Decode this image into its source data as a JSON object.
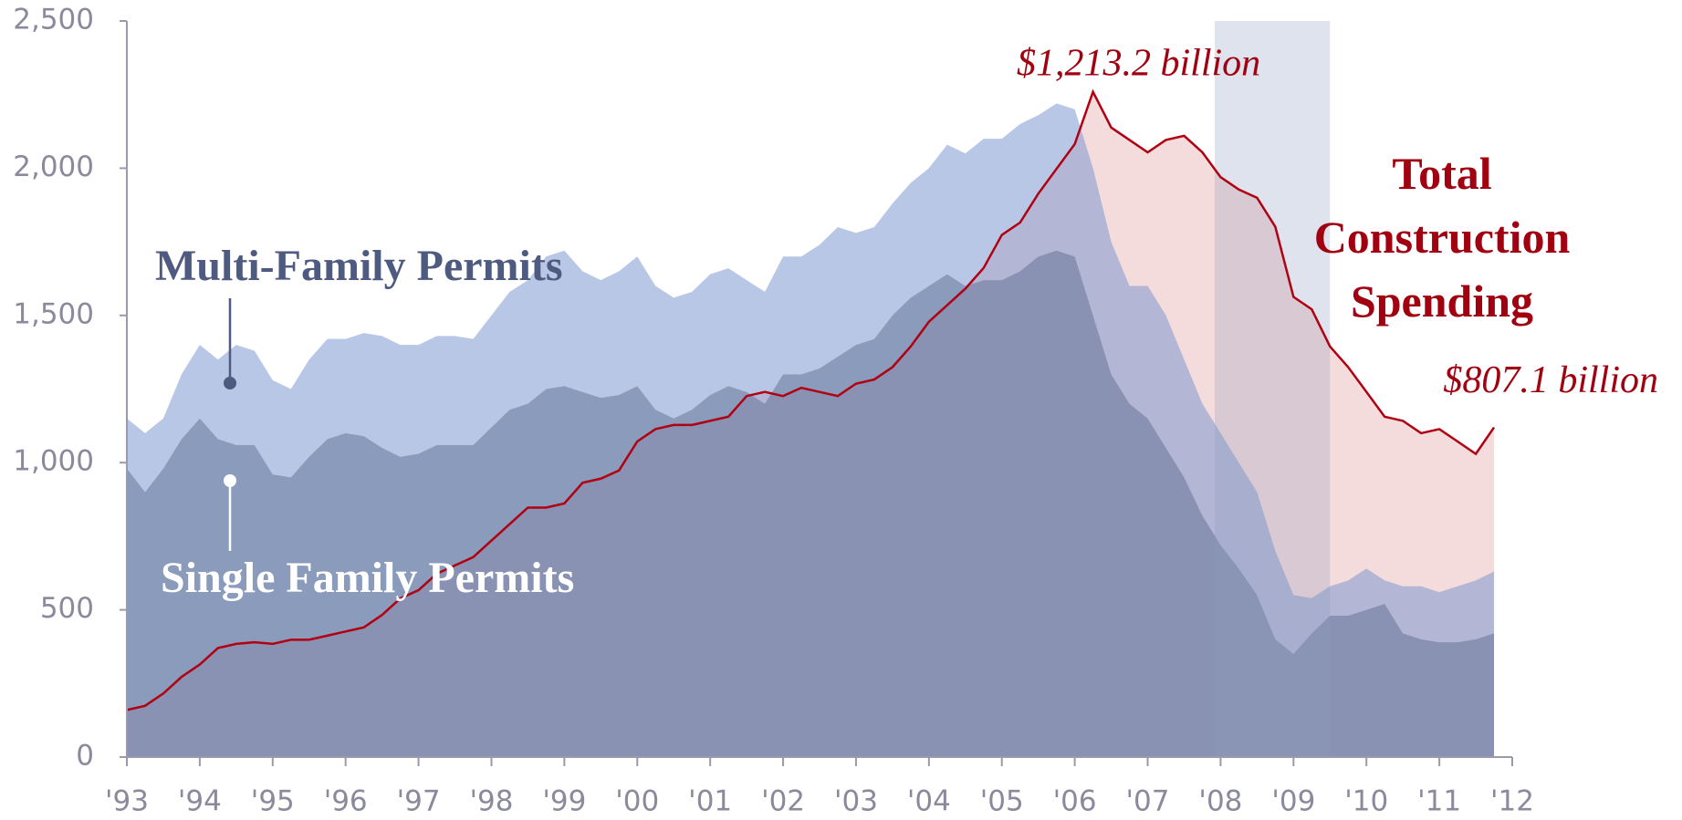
{
  "chart_data": {
    "type": "stacked_area_line",
    "x": [
      1993,
      1993.25,
      1993.5,
      1993.75,
      1994,
      1994.25,
      1994.5,
      1994.75,
      1995,
      1995.25,
      1995.5,
      1995.75,
      1996,
      1996.25,
      1996.5,
      1996.75,
      1997,
      1997.25,
      1997.5,
      1997.75,
      1998,
      1998.25,
      1998.5,
      1998.75,
      1999,
      1999.25,
      1999.5,
      1999.75,
      2000,
      2000.25,
      2000.5,
      2000.75,
      2001,
      2001.25,
      2001.5,
      2001.75,
      2002,
      2002.25,
      2002.5,
      2002.75,
      2003,
      2003.25,
      2003.5,
      2003.75,
      2004,
      2004.25,
      2004.5,
      2004.75,
      2005,
      2005.25,
      2005.5,
      2005.75,
      2006,
      2006.25,
      2006.5,
      2006.75,
      2007,
      2007.25,
      2007.5,
      2007.75,
      2008,
      2008.25,
      2008.5,
      2008.75,
      2009,
      2009.25,
      2009.5,
      2009.75,
      2010,
      2010.25,
      2010.5,
      2010.75,
      2011,
      2011.25,
      2011.5,
      2011.75
    ],
    "series": [
      {
        "name": "Single Family Permits",
        "color": "rgba(100,122,164,0.75)",
        "values": [
          980,
          900,
          980,
          1080,
          1150,
          1080,
          1060,
          1060,
          960,
          950,
          1020,
          1080,
          1100,
          1090,
          1050,
          1020,
          1030,
          1060,
          1060,
          1060,
          1120,
          1180,
          1200,
          1250,
          1260,
          1240,
          1220,
          1230,
          1260,
          1180,
          1150,
          1180,
          1230,
          1260,
          1240,
          1200,
          1300,
          1300,
          1320,
          1360,
          1400,
          1420,
          1500,
          1560,
          1600,
          1640,
          1600,
          1620,
          1620,
          1650,
          1700,
          1720,
          1700,
          1500,
          1300,
          1200,
          1150,
          1050,
          950,
          820,
          720,
          640,
          550,
          400,
          350,
          420,
          480,
          480,
          500,
          520,
          420,
          400,
          390,
          390,
          400,
          420
        ]
      },
      {
        "name": "Multi-Family Permits",
        "color": "rgba(113,143,203,0.5)",
        "values": [
          170,
          200,
          170,
          220,
          250,
          270,
          340,
          320,
          320,
          300,
          330,
          340,
          320,
          350,
          380,
          380,
          370,
          370,
          370,
          360,
          380,
          400,
          420,
          450,
          460,
          410,
          400,
          420,
          440,
          420,
          410,
          400,
          410,
          400,
          380,
          380,
          400,
          400,
          420,
          440,
          380,
          380,
          380,
          390,
          400,
          440,
          450,
          480,
          480,
          500,
          480,
          500,
          500,
          500,
          450,
          400,
          450,
          450,
          400,
          380,
          380,
          360,
          350,
          300,
          200,
          120,
          100,
          120,
          140,
          80,
          160,
          180,
          170,
          190,
          200,
          210
        ]
      },
      {
        "name": "Total Construction Spending",
        "color": "#b00012",
        "fill": "#f5dcdc",
        "axis": "y2",
        "values": [
          465,
          470,
          485,
          505,
          520,
          540,
          545,
          547,
          545,
          550,
          550,
          555,
          560,
          565,
          580,
          600,
          610,
          630,
          640,
          650,
          670,
          690,
          710,
          710,
          715,
          740,
          745,
          755,
          790,
          805,
          810,
          810,
          815,
          820,
          845,
          850,
          845,
          855,
          850,
          845,
          860,
          865,
          880,
          905,
          935,
          955,
          975,
          1000,
          1040,
          1055,
          1090,
          1120,
          1150,
          1213.2,
          1170,
          1155,
          1140,
          1155,
          1160,
          1140,
          1110,
          1095,
          1085,
          1050,
          965,
          950,
          905,
          880,
          850,
          820,
          815,
          800,
          805,
          790,
          775,
          807.1
        ],
        "value_labels": [
          null,
          null,
          null,
          null,
          null,
          null,
          null,
          null,
          null,
          null,
          null,
          null,
          null,
          null,
          null,
          null,
          null,
          null,
          null,
          null,
          null,
          null,
          null,
          null,
          null,
          null,
          null,
          null,
          null,
          null,
          null,
          null,
          null,
          null,
          null,
          null,
          null,
          null,
          null,
          null,
          null,
          null,
          null,
          null,
          null,
          null,
          null,
          null,
          null,
          null,
          null,
          null,
          null,
          "$1,213.2 billion",
          null,
          null,
          null,
          null,
          null,
          null,
          null,
          null,
          null,
          null,
          null,
          null,
          null,
          null,
          null,
          null,
          null,
          null,
          null,
          null,
          null,
          "$807.1 billion"
        ]
      }
    ],
    "shaded_span": [
      2007.92,
      2009.5
    ],
    "xlim": [
      1993,
      2012
    ],
    "xticks": [
      {
        "value": 1993,
        "label": "'93"
      },
      {
        "value": 1994,
        "label": "'94"
      },
      {
        "value": 1995,
        "label": "'95"
      },
      {
        "value": 1996,
        "label": "'96"
      },
      {
        "value": 1997,
        "label": "'97"
      },
      {
        "value": 1998,
        "label": "'98"
      },
      {
        "value": 1999,
        "label": "'99"
      },
      {
        "value": 2000,
        "label": "'00"
      },
      {
        "value": 2001,
        "label": "'01"
      },
      {
        "value": 2002,
        "label": "'02"
      },
      {
        "value": 2003,
        "label": "'03"
      },
      {
        "value": 2004,
        "label": "'04"
      },
      {
        "value": 2005,
        "label": "'05"
      },
      {
        "value": 2006,
        "label": "'06"
      },
      {
        "value": 2007,
        "label": "'07"
      },
      {
        "value": 2008,
        "label": "'08"
      },
      {
        "value": 2009,
        "label": "'09"
      },
      {
        "value": 2010,
        "label": "'10"
      },
      {
        "value": 2011,
        "label": "'11"
      },
      {
        "value": 2012,
        "label": "'12"
      }
    ],
    "ylim": [
      0,
      2500
    ],
    "yticks": [
      0,
      {
        "value": 500,
        "label": "500"
      },
      {
        "value": 1000,
        "label": "1,000"
      },
      {
        "value": 1500,
        "label": "1,500"
      },
      {
        "value": 2000,
        "label": "2,000"
      },
      {
        "value": 2500,
        "label": "2,500"
      }
    ],
    "y2lim": [
      408,
      1299
    ]
  }
}
